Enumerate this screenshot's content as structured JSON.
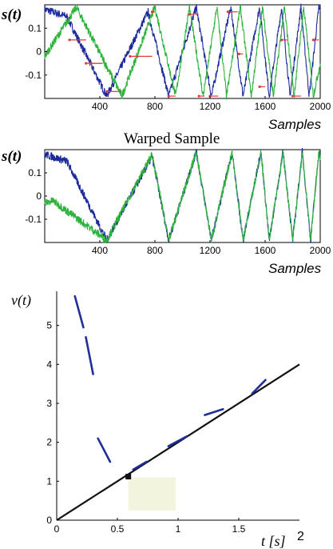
{
  "chart_data": [
    {
      "type": "line",
      "ylabel": "s(t)",
      "xlabel": "Samples",
      "xlim": [
        0,
        2000
      ],
      "ylim": [
        -0.2,
        0.2
      ],
      "xticks": [
        400,
        800,
        1200,
        1600,
        2000
      ],
      "yticks": [
        0.1,
        0,
        -0.1
      ],
      "xtick_labels": [
        "400",
        "800",
        "1200",
        "1600",
        "2000"
      ],
      "ytick_labels": [
        "0.1",
        "0",
        "-0.1"
      ],
      "series": [
        {
          "color": "#1a2a9c",
          "x": [
            0,
            160,
            450,
            750,
            900,
            1100,
            1210,
            1350,
            1440,
            1560,
            1630,
            1720,
            1780,
            1860,
            1920,
            1990,
            2000
          ],
          "y": [
            0.18,
            0.15,
            -0.19,
            0.17,
            -0.19,
            0.19,
            -0.19,
            0.19,
            -0.19,
            0.19,
            -0.19,
            0.19,
            -0.19,
            0.19,
            -0.19,
            0.19,
            0.17
          ]
        },
        {
          "color": "#2db33c",
          "x": [
            0,
            230,
            560,
            800,
            950,
            1050,
            1150,
            1250,
            1320,
            1420,
            1500,
            1580,
            1660,
            1740,
            1810,
            1880,
            1950,
            2000
          ],
          "y": [
            -0.02,
            0.19,
            -0.19,
            0.19,
            -0.19,
            0.19,
            -0.19,
            0.19,
            -0.19,
            0.19,
            -0.19,
            0.19,
            -0.19,
            0.19,
            -0.19,
            0.19,
            -0.19,
            -0.05
          ]
        }
      ],
      "warping_links": [
        [
          180,
          300,
          0.05
        ],
        [
          300,
          420,
          -0.05
        ],
        [
          330,
          420,
          -0.05
        ],
        [
          450,
          560,
          -0.17
        ],
        [
          620,
          780,
          -0.02
        ],
        [
          780,
          800,
          0.17
        ],
        [
          900,
          950,
          -0.19
        ],
        [
          1050,
          1110,
          0.16
        ],
        [
          1120,
          1160,
          -0.19
        ],
        [
          1200,
          1260,
          -0.19
        ],
        [
          1330,
          1400,
          0.17
        ],
        [
          1410,
          1440,
          -0.01
        ],
        [
          1560,
          1600,
          -0.15
        ],
        [
          1720,
          1760,
          0.05
        ],
        [
          1800,
          1860,
          -0.19
        ],
        [
          1950,
          1990,
          0.05
        ]
      ]
    },
    {
      "type": "line",
      "title": "Warped Sample",
      "ylabel": "s(t)",
      "xlabel": "Samples",
      "xlim": [
        0,
        2000
      ],
      "ylim": [
        -0.2,
        0.2
      ],
      "xticks": [
        400,
        800,
        1200,
        1600,
        2000
      ],
      "yticks": [
        0.1,
        0,
        -0.1
      ],
      "xtick_labels": [
        "400",
        "800",
        "1200",
        "1600",
        "2000"
      ],
      "ytick_labels": [
        "0.1",
        "0",
        "-0.1"
      ],
      "series": [
        {
          "color": "#1a2a9c",
          "x": [
            0,
            160,
            450,
            780,
            900,
            1100,
            1210,
            1360,
            1440,
            1570,
            1630,
            1730,
            1800,
            1870,
            1930,
            1990,
            2000
          ],
          "y": [
            0.18,
            0.15,
            -0.19,
            0.17,
            -0.19,
            0.19,
            -0.19,
            0.19,
            -0.19,
            0.19,
            -0.19,
            0.19,
            -0.19,
            0.19,
            -0.19,
            0.19,
            0.17
          ]
        },
        {
          "color": "#2db33c",
          "x": [
            0,
            60,
            450,
            780,
            900,
            1100,
            1210,
            1360,
            1440,
            1570,
            1630,
            1730,
            1800,
            1870,
            1930,
            1990,
            2000
          ],
          "y": [
            -0.03,
            -0.02,
            -0.19,
            0.18,
            -0.19,
            0.19,
            -0.19,
            0.19,
            -0.19,
            0.19,
            -0.19,
            0.19,
            -0.19,
            0.19,
            -0.19,
            0.19,
            0.17
          ]
        }
      ]
    },
    {
      "type": "line",
      "ylabel": "v(t)",
      "xlabel": "t [s]",
      "x_corner_label": "2",
      "xlim": [
        0,
        2
      ],
      "ylim": [
        0,
        6
      ],
      "xticks": [
        0,
        0.5,
        1,
        1.5
      ],
      "yticks": [
        0,
        1,
        2,
        3,
        4,
        5
      ],
      "xtick_labels": [
        "0",
        "0.5",
        "1",
        "1.5"
      ],
      "ytick_labels": [
        "0",
        "1",
        "2",
        "3",
        "4",
        "5"
      ],
      "line": {
        "color": "#111111",
        "x": [
          0,
          2
        ],
        "y": [
          0,
          4
        ]
      },
      "segments": [
        {
          "color": "#1f2f9a",
          "x": [
            0.15,
            0.22
          ],
          "y": [
            5.75,
            4.95
          ]
        },
        {
          "color": "#1f2f9a",
          "x": [
            0.24,
            0.3
          ],
          "y": [
            4.7,
            3.75
          ]
        },
        {
          "color": "#1f2f9a",
          "x": [
            0.34,
            0.44
          ],
          "y": [
            2.1,
            1.5
          ]
        },
        {
          "color": "#1f2f9a",
          "x": [
            0.63,
            0.74
          ],
          "y": [
            1.3,
            1.5
          ]
        },
        {
          "color": "#1f2f9a",
          "x": [
            0.92,
            1.07
          ],
          "y": [
            1.9,
            2.15
          ]
        },
        {
          "color": "#1f2f9a",
          "x": [
            1.22,
            1.37
          ],
          "y": [
            2.7,
            2.85
          ]
        },
        {
          "color": "#1f2f9a",
          "x": [
            1.61,
            1.72
          ],
          "y": [
            3.25,
            3.6
          ]
        }
      ],
      "marker": {
        "x": 0.59,
        "y": 1.12
      },
      "highlight": {
        "x": [
          0.59,
          0.98
        ],
        "y": [
          0.25,
          1.1
        ],
        "color": "#f2f4dd"
      }
    }
  ]
}
